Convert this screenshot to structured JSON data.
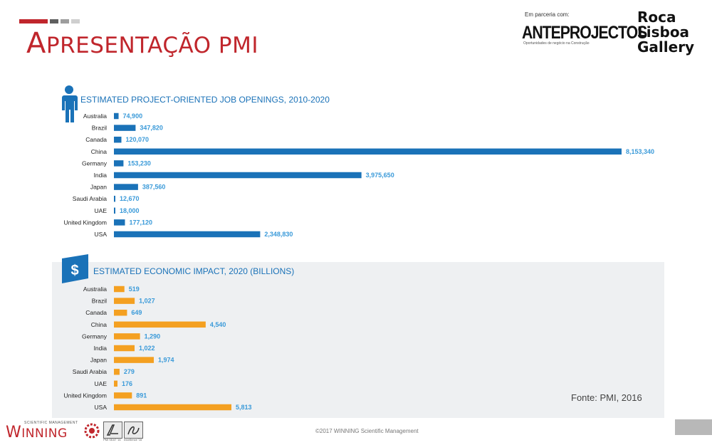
{
  "header": {
    "title_first_letter": "A",
    "title_rest": "PRESENTAÇÃO PMI",
    "partner_label": "Em parceria com:",
    "partner_name": "ANTEPROJECTOS",
    "partner_tagline": "Oportunidades de negócio na Construção",
    "gallery_lines": [
      "Roca",
      "Lisboa",
      "Gallery"
    ]
  },
  "chart_data": [
    {
      "type": "bar",
      "orientation": "horizontal",
      "title": "ESTIMATED PROJECT-ORIENTED JOB OPENINGS, 2010-2020",
      "categories": [
        "Australia",
        "Brazil",
        "Canada",
        "China",
        "Germany",
        "India",
        "Japan",
        "Saudi Arabia",
        "UAE",
        "United Kingdom",
        "USA"
      ],
      "values": [
        74900,
        347820,
        120070,
        8153340,
        153230,
        3975650,
        387560,
        12670,
        18000,
        177120,
        2348830
      ],
      "value_labels": [
        "74,900",
        "347,820",
        "120,070",
        "8,153,340",
        "153,230",
        "3,975,650",
        "387,560",
        "12,670",
        "18,000",
        "177,120",
        "2,348,830"
      ],
      "color": "#1a72b8",
      "label_color": "#3a9ad9"
    },
    {
      "type": "bar",
      "orientation": "horizontal",
      "title": "ESTIMATED ECONOMIC IMPACT, 2020 (BILLIONS)",
      "categories": [
        "Australia",
        "Brazil",
        "Canada",
        "China",
        "Germany",
        "India",
        "Japan",
        "Saudi Arabia",
        "UAE",
        "United Kingdom",
        "USA"
      ],
      "values": [
        519,
        1027,
        649,
        4540,
        1290,
        1022,
        1974,
        279,
        176,
        891,
        5813
      ],
      "value_labels": [
        "519",
        "1,027",
        "649",
        "4,540",
        "1,290",
        "1,022",
        "1,974",
        "279",
        "176",
        "891",
        "5,813"
      ],
      "color": "#f4a021",
      "label_color": "#3a9ad9"
    }
  ],
  "source": "Fonte: PMI, 2016",
  "footer": {
    "copyright": "©2017 WINNING Scientific Management",
    "brand_w": "W",
    "brand_rest": "INNING",
    "brand_sub": "SCIENTIFIC MANAGEMENT",
    "logo_captions": [
      "PMI SEAT '16",
      "excellence '16"
    ]
  },
  "colors": {
    "red": "#c0262c",
    "grey_dark": "#5f5f5f",
    "grey_mid": "#9d9d9d",
    "grey_light": "#cfcfcf"
  }
}
